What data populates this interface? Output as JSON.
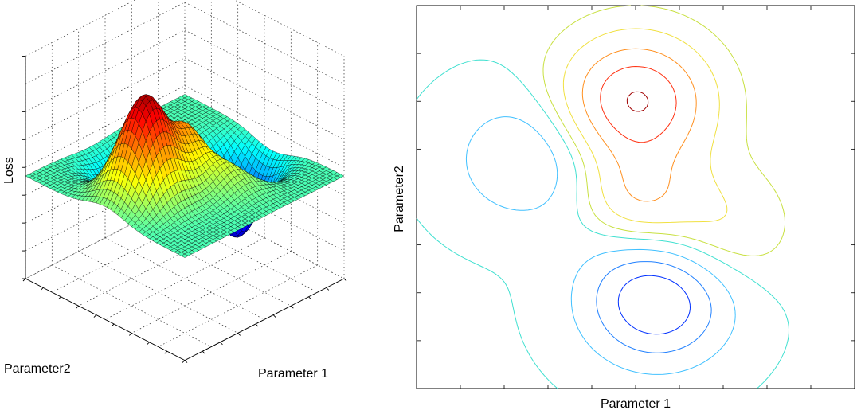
{
  "chart_data": [
    {
      "type": "surface",
      "xlabel": "Parameter 1",
      "ylabel": "Parameter2",
      "zlabel": "Loss",
      "grid": true,
      "colormap": "jet",
      "x_range": [
        -3,
        3
      ],
      "y_range": [
        -3,
        3
      ],
      "surface_function": "peaks",
      "peaks": [
        {
          "amplitude": 3,
          "x_center": 0,
          "y_center": 1.5,
          "sigma": 0.7
        },
        {
          "amplitude": 1.2,
          "x_center": 0,
          "y_center": 0,
          "sigma": 0.5
        },
        {
          "amplitude": 1.0,
          "x_center": 1.0,
          "y_center": -0.5,
          "sigma": 0.7
        },
        {
          "amplitude": -2.5,
          "x_center": 0.3,
          "y_center": -1.6,
          "sigma": 0.7
        },
        {
          "amplitude": -1.2,
          "x_center": -1.5,
          "y_center": 0.6,
          "sigma": 0.7
        }
      ]
    },
    {
      "type": "contour",
      "xlabel": "Parameter 1",
      "ylabel": "Parameter2",
      "x_range": [
        -3,
        3
      ],
      "y_range": [
        -3,
        3
      ],
      "x_tick_count": 11,
      "y_tick_count": 9,
      "levels": [
        -2.4,
        -1.8,
        -1.2,
        -0.6,
        -0.05,
        0.3,
        0.8,
        1.5,
        2.2,
        2.9
      ],
      "level_colors": [
        "#0000cc",
        "#0030ff",
        "#2080ff",
        "#40c0ff",
        "#40e0d0",
        "#c8e040",
        "#f0e040",
        "#ff9020",
        "#ff3010",
        "#a00000"
      ]
    }
  ]
}
